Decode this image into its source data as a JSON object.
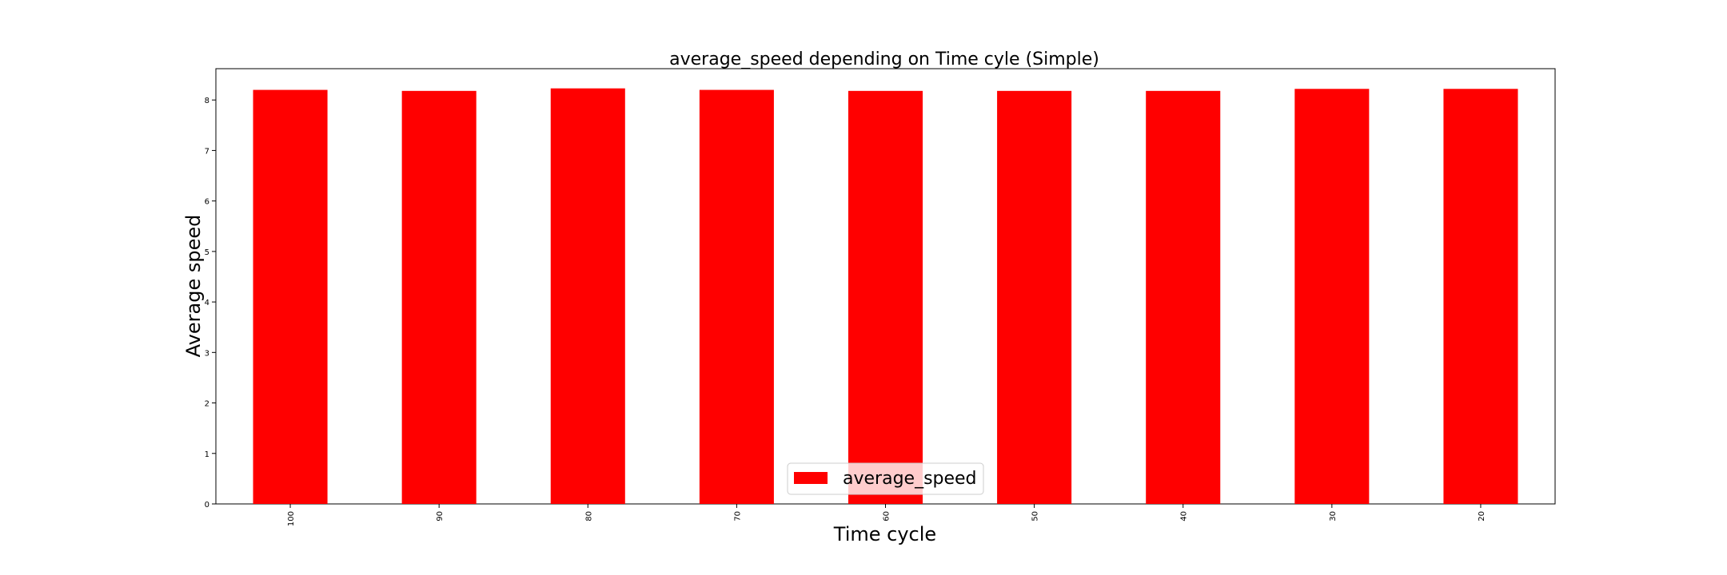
{
  "chart_data": {
    "type": "bar",
    "title": "average_speed depending on Time cyle (Simple)",
    "xlabel": "Time cycle",
    "ylabel": "Average speed",
    "categories": [
      "100",
      "90",
      "80",
      "70",
      "60",
      "50",
      "40",
      "30",
      "20"
    ],
    "series": [
      {
        "name": "average_speed",
        "color": "#ff0000",
        "values": [
          8.2,
          8.18,
          8.23,
          8.2,
          8.18,
          8.18,
          8.18,
          8.22,
          8.22
        ]
      }
    ],
    "ylim": [
      0,
      8.62
    ],
    "yticks": [
      "0",
      "1",
      "2",
      "3",
      "4",
      "5",
      "6",
      "7",
      "8"
    ],
    "grid": false,
    "legend_position": "lower center"
  }
}
